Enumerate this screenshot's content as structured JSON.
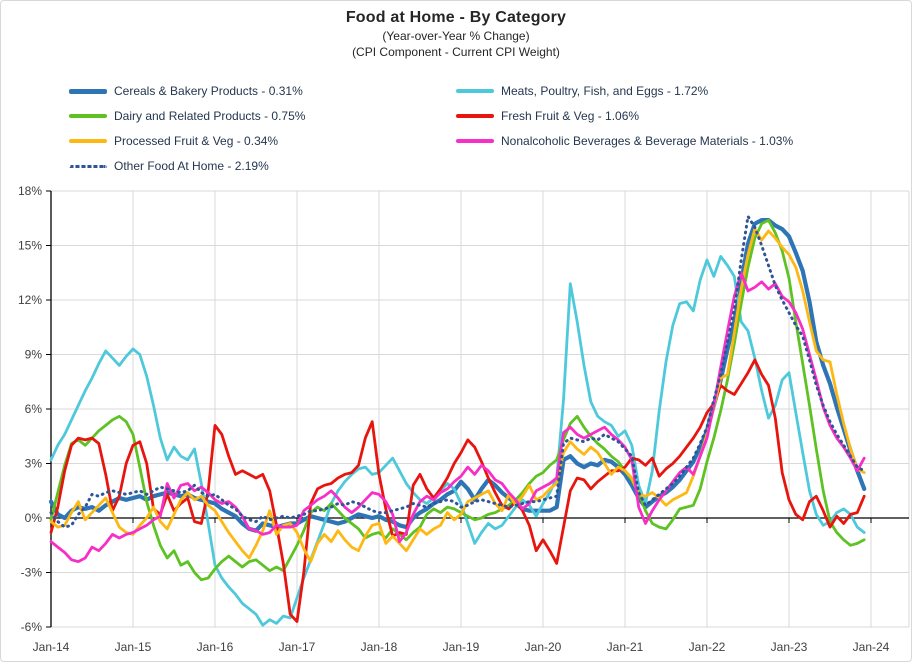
{
  "header": {
    "title": "Food at Home - By Category",
    "subtitle1": "(Year-over-Year % Change)",
    "subtitle2": "(CPI Component - Current CPI Weight)"
  },
  "chart_data": {
    "type": "line",
    "title": "Food at Home - By Category",
    "subtitle1": "(Year-over-Year % Change)",
    "subtitle2": "(CPI Component - Current CPI Weight)",
    "x_frequency": "monthly",
    "x_start": "Jan-14",
    "x_end": "Dec-23",
    "x_tick_labels": [
      "Jan-14",
      "Jan-15",
      "Jan-16",
      "Jan-17",
      "Jan-18",
      "Jan-19",
      "Jan-20",
      "Jan-21",
      "Jan-22",
      "Jan-23",
      "Jan-24"
    ],
    "y_ticks": [
      18,
      15,
      12,
      9,
      6,
      3,
      0,
      -3,
      -6
    ],
    "y_tick_labels": [
      "18%",
      "15%",
      "12%",
      "9%",
      "6%",
      "3%",
      "0%",
      "-3%",
      "-6%"
    ],
    "ylim": [
      -6,
      18
    ],
    "grid": true,
    "grid_color": "#d9d9d9",
    "axis_color": "#000000",
    "tick_label_color": "#404040",
    "legend_position": "top-left-two-columns",
    "series": [
      {
        "id": "cereals-bakery",
        "name": "Cereals & Bakery Products",
        "legend_label": "Cereals & Bakery Products - 0.31%",
        "cpi_weight": "0.31%",
        "color": "#2e75b6",
        "width": 4.2,
        "dash": false,
        "legend_column": 0,
        "legend_row": 0,
        "values": [
          0.9,
          0.2,
          0.0,
          0.4,
          0.6,
          0.5,
          0.6,
          0.4,
          0.7,
          0.9,
          1.1,
          1.0,
          1.1,
          1.2,
          1.0,
          1.2,
          1.3,
          1.4,
          1.3,
          1.2,
          1.3,
          1.1,
          1.0,
          0.9,
          0.8,
          0.5,
          0.3,
          0.1,
          -0.3,
          -0.6,
          -0.7,
          -0.3,
          -0.4,
          -0.5,
          -0.4,
          -0.3,
          -0.3,
          -0.1,
          0.1,
          0.0,
          -0.1,
          -0.2,
          -0.3,
          -0.2,
          0.0,
          0.2,
          0.1,
          0.0,
          0.1,
          -0.1,
          -0.2,
          -0.4,
          -0.5,
          0.0,
          0.3,
          0.5,
          0.8,
          1.0,
          1.3,
          1.5,
          2.0,
          1.6,
          1.0,
          1.6,
          2.1,
          1.8,
          1.4,
          1.1,
          0.8,
          0.5,
          0.4,
          0.4,
          0.4,
          0.4,
          0.6,
          3.2,
          3.4,
          3.0,
          2.8,
          3.0,
          2.9,
          3.2,
          3.1,
          2.8,
          2.4,
          1.8,
          1.1,
          0.6,
          0.9,
          1.2,
          1.4,
          1.7,
          2.1,
          2.6,
          3.1,
          3.9,
          4.8,
          6.2,
          7.6,
          9.3,
          10.8,
          13.0,
          15.1,
          16.2,
          16.4,
          16.4,
          16.1,
          15.9,
          15.5,
          14.6,
          13.6,
          11.9,
          9.7,
          8.4,
          7.4,
          6.1,
          4.9,
          3.7,
          2.6,
          1.6
        ]
      },
      {
        "id": "meats-poultry-fish-eggs",
        "name": "Meats, Poultry, Fish, and Eggs",
        "legend_label": "Meats, Poultry, Fish, and Eggs - 1.72%",
        "cpi_weight": "1.72%",
        "color": "#4ec9db",
        "width": 2.8,
        "dash": false,
        "legend_column": 1,
        "legend_row": 0,
        "values": [
          3.2,
          4.0,
          4.6,
          5.4,
          6.2,
          7.0,
          7.7,
          8.5,
          9.2,
          8.8,
          8.4,
          8.9,
          9.3,
          9.0,
          7.8,
          6.2,
          4.4,
          3.2,
          3.9,
          3.4,
          3.2,
          3.8,
          1.9,
          -0.3,
          -2.6,
          -3.3,
          -3.8,
          -4.2,
          -4.7,
          -5.0,
          -5.3,
          -5.9,
          -5.6,
          -5.8,
          -5.4,
          -5.5,
          -4.4,
          -3.3,
          -2.3,
          -1.3,
          -0.3,
          0.8,
          1.5,
          2.0,
          2.4,
          2.7,
          2.8,
          2.4,
          2.5,
          2.9,
          3.3,
          2.6,
          1.9,
          1.4,
          1.0,
          0.8,
          1.1,
          1.5,
          1.9,
          1.6,
          0.8,
          -0.3,
          -1.4,
          -0.8,
          -0.3,
          -0.6,
          -0.4,
          0.1,
          0.6,
          1.0,
          0.7,
          0.1,
          0.8,
          1.4,
          2.2,
          6.5,
          12.9,
          10.8,
          8.4,
          6.4,
          5.6,
          5.3,
          5.1,
          4.5,
          4.8,
          4.0,
          1.8,
          0.8,
          2.6,
          5.9,
          8.6,
          10.6,
          11.8,
          11.9,
          11.4,
          13.1,
          14.2,
          13.3,
          14.4,
          13.9,
          13.3,
          10.8,
          10.3,
          8.8,
          7.0,
          5.5,
          6.2,
          7.6,
          8.0,
          5.8,
          3.6,
          1.5,
          0.2,
          -0.4,
          -0.2,
          0.3,
          0.5,
          0.2,
          -0.5,
          -0.8
        ]
      },
      {
        "id": "dairy",
        "name": "Dairy and Related Products",
        "legend_label": "Dairy and Related Products - 0.75%",
        "cpi_weight": "0.75%",
        "color": "#5ec223",
        "width": 2.8,
        "dash": false,
        "legend_column": 0,
        "legend_row": 1,
        "values": [
          -0.1,
          1.4,
          2.9,
          4.1,
          4.3,
          4.0,
          4.4,
          4.8,
          5.1,
          5.4,
          5.6,
          5.3,
          4.6,
          2.8,
          0.9,
          -0.4,
          -1.5,
          -2.2,
          -1.8,
          -2.6,
          -2.4,
          -3.0,
          -3.4,
          -3.3,
          -2.8,
          -2.4,
          -2.1,
          -2.4,
          -2.7,
          -2.4,
          -2.3,
          -2.6,
          -2.9,
          -2.7,
          -2.9,
          -2.2,
          -1.5,
          -0.7,
          0.3,
          0.6,
          0.4,
          0.8,
          0.4,
          0.0,
          -0.3,
          -0.6,
          -1.1,
          -0.9,
          -0.8,
          -1.1,
          -0.6,
          -0.9,
          -1.2,
          -0.8,
          -0.5,
          0.2,
          0.5,
          0.3,
          0.6,
          0.5,
          0.3,
          0.1,
          -0.1,
          0.0,
          0.2,
          0.3,
          0.5,
          0.7,
          1.0,
          1.4,
          1.9,
          2.3,
          2.5,
          2.9,
          3.2,
          4.3,
          5.2,
          5.6,
          5.0,
          4.5,
          4.1,
          3.8,
          3.4,
          3.1,
          2.6,
          2.1,
          1.4,
          0.4,
          -0.3,
          -0.5,
          -0.6,
          -0.1,
          0.5,
          0.6,
          0.7,
          1.6,
          3.1,
          4.4,
          5.9,
          7.6,
          9.6,
          11.8,
          13.8,
          15.4,
          16.2,
          16.4,
          15.7,
          14.7,
          13.2,
          10.8,
          8.5,
          6.2,
          3.8,
          1.5,
          -0.2,
          -0.8,
          -1.2,
          -1.5,
          -1.4,
          -1.2
        ]
      },
      {
        "id": "fresh-fruit-veg",
        "name": "Fresh Fruit & Veg",
        "legend_label": "Fresh Fruit & Veg - 1.06%",
        "cpi_weight": "1.06%",
        "color": "#e8150f",
        "width": 2.8,
        "dash": false,
        "legend_column": 1,
        "legend_row": 1,
        "values": [
          -0.8,
          0.6,
          2.6,
          4.0,
          4.4,
          4.3,
          4.4,
          4.1,
          2.4,
          0.4,
          1.2,
          3.0,
          4.0,
          4.2,
          3.0,
          0.5,
          0.2,
          1.3,
          0.4,
          0.8,
          1.1,
          -0.2,
          -0.3,
          1.5,
          5.1,
          4.6,
          3.4,
          2.4,
          2.6,
          2.4,
          2.2,
          2.4,
          1.5,
          -0.4,
          -2.5,
          -5.3,
          -5.7,
          -3.0,
          0.8,
          1.6,
          1.8,
          1.9,
          2.2,
          2.4,
          2.5,
          2.9,
          4.4,
          5.3,
          2.4,
          0.5,
          -1.0,
          -0.8,
          -0.9,
          1.8,
          2.4,
          1.6,
          1.1,
          1.6,
          2.2,
          3.0,
          3.6,
          4.3,
          3.9,
          3.1,
          2.2,
          1.4,
          0.7,
          0.5,
          0.9,
          0.4,
          -0.4,
          -1.8,
          -1.2,
          -1.8,
          -2.5,
          -0.5,
          1.5,
          2.2,
          2.1,
          1.6,
          2.0,
          2.3,
          2.6,
          2.6,
          2.8,
          3.3,
          3.2,
          2.9,
          3.3,
          2.3,
          2.7,
          3.0,
          3.4,
          3.9,
          4.4,
          5.0,
          5.8,
          6.3,
          7.3,
          7.0,
          6.8,
          7.4,
          8.0,
          8.7,
          7.9,
          7.3,
          5.5,
          2.5,
          1.0,
          0.2,
          -0.1,
          0.9,
          1.2,
          0.4,
          -0.5,
          0.1,
          -0.3,
          0.2,
          0.3,
          1.2
        ]
      },
      {
        "id": "processed-fruit-veg",
        "name": "Processed Fruit & Veg",
        "legend_label": "Processed Fruit & Veg - 0.34%",
        "cpi_weight": "0.34%",
        "color": "#fdb813",
        "width": 2.8,
        "dash": false,
        "legend_column": 0,
        "legend_row": 2,
        "values": [
          -0.2,
          -0.5,
          -0.4,
          0.3,
          0.9,
          -0.1,
          0.3,
          0.7,
          1.1,
          0.3,
          -0.5,
          -0.8,
          -0.9,
          -0.4,
          0.0,
          0.6,
          -0.2,
          -0.6,
          0.2,
          1.0,
          1.4,
          1.0,
          1.2,
          0.7,
          0.4,
          -0.2,
          -0.8,
          -1.3,
          -1.8,
          -2.2,
          -1.5,
          -0.7,
          0.4,
          -0.9,
          -0.4,
          -0.3,
          -0.8,
          -1.7,
          -2.4,
          -1.4,
          -0.9,
          -1.3,
          -0.7,
          -1.2,
          -1.6,
          -1.8,
          -1.0,
          -0.4,
          -0.3,
          -1.4,
          -1.0,
          -1.4,
          -1.8,
          -1.2,
          -0.6,
          -0.9,
          -0.6,
          -0.4,
          0.3,
          -0.1,
          0.2,
          0.9,
          1.1,
          1.3,
          1.5,
          0.8,
          0.4,
          1.3,
          0.7,
          1.2,
          1.8,
          1.0,
          1.2,
          1.6,
          1.9,
          3.6,
          4.2,
          3.8,
          3.5,
          3.9,
          3.6,
          3.0,
          2.4,
          2.8,
          2.6,
          2.2,
          1.3,
          1.2,
          1.4,
          1.1,
          0.7,
          1.0,
          1.2,
          1.4,
          2.3,
          3.4,
          4.6,
          6.1,
          7.7,
          7.9,
          10.2,
          12.6,
          14.5,
          15.9,
          15.3,
          15.8,
          15.4,
          14.9,
          14.5,
          13.8,
          12.5,
          10.8,
          9.2,
          8.7,
          8.6,
          6.8,
          5.2,
          3.8,
          2.7,
          2.5
        ]
      },
      {
        "id": "nonalcoholic-beverages",
        "name": "Nonalcoholic Beverages & Beverage Materials",
        "legend_label": "Nonalcoholic Beverages & Beverage Materials - 1.03%",
        "cpi_weight": "1.03%",
        "color": "#f72fc7",
        "width": 2.8,
        "dash": false,
        "legend_column": 1,
        "legend_row": 2,
        "values": [
          -1.3,
          -1.6,
          -1.9,
          -2.3,
          -2.4,
          -2.2,
          -1.6,
          -1.8,
          -1.4,
          -0.9,
          -1.1,
          -0.9,
          -0.8,
          -0.6,
          -0.4,
          -0.1,
          0.1,
          1.9,
          1.1,
          1.8,
          1.9,
          1.5,
          1.7,
          1.4,
          1.0,
          0.8,
          0.9,
          0.6,
          0.1,
          -0.6,
          -0.7,
          -0.9,
          -0.8,
          -0.4,
          -0.5,
          -0.5,
          -0.4,
          0.4,
          0.7,
          1.0,
          1.2,
          1.5,
          1.1,
          0.6,
          0.3,
          0.6,
          1.0,
          1.4,
          1.3,
          0.9,
          0.2,
          -1.3,
          -0.8,
          0.2,
          0.9,
          1.2,
          1.0,
          1.4,
          1.6,
          2.0,
          2.3,
          2.8,
          2.4,
          2.9,
          2.6,
          2.1,
          1.9,
          1.4,
          1.0,
          0.5,
          0.8,
          1.5,
          1.7,
          1.9,
          2.2,
          4.7,
          5.0,
          4.6,
          4.4,
          4.6,
          4.8,
          5.0,
          4.6,
          4.3,
          3.9,
          3.2,
          0.6,
          -0.3,
          0.4,
          1.0,
          1.5,
          2.0,
          2.5,
          2.8,
          2.4,
          3.4,
          4.4,
          6.2,
          8.3,
          10.3,
          12.2,
          13.5,
          12.5,
          12.7,
          13.0,
          12.6,
          12.9,
          12.2,
          11.9,
          11.3,
          10.4,
          9.0,
          7.6,
          6.1,
          5.1,
          4.4,
          3.9,
          3.3,
          2.6,
          3.3
        ]
      },
      {
        "id": "other-food-at-home",
        "name": "Other Food At Home",
        "legend_label": "Other Food At Home - 2.19%",
        "cpi_weight": "2.19%",
        "color": "#2f5597",
        "width": 2.8,
        "dash": true,
        "legend_column": 0,
        "legend_row": 3,
        "values": [
          0.3,
          -0.2,
          -0.5,
          -0.4,
          0.2,
          0.6,
          1.3,
          1.2,
          1.4,
          1.5,
          1.4,
          1.3,
          1.4,
          1.5,
          1.3,
          1.5,
          1.7,
          1.6,
          1.5,
          1.4,
          1.5,
          1.8,
          1.4,
          1.2,
          1.3,
          1.0,
          0.7,
          0.5,
          0.1,
          -0.1,
          -0.2,
          0.1,
          -0.1,
          0.0,
          0.1,
          0.0,
          0.1,
          0.2,
          0.4,
          0.4,
          0.5,
          0.6,
          0.8,
          0.7,
          0.9,
          0.8,
          0.6,
          0.4,
          0.3,
          0.3,
          0.4,
          0.5,
          0.6,
          0.8,
          0.7,
          0.6,
          0.8,
          0.9,
          1.0,
          0.9,
          0.6,
          0.7,
          0.9,
          1.0,
          0.9,
          0.8,
          0.7,
          0.6,
          0.7,
          0.8,
          0.9,
          0.9,
          1.0,
          1.1,
          1.2,
          4.1,
          4.4,
          4.3,
          4.2,
          4.4,
          4.3,
          4.6,
          4.4,
          4.2,
          3.8,
          3.4,
          1.4,
          0.7,
          1.0,
          1.3,
          1.6,
          1.9,
          2.3,
          2.8,
          3.3,
          4.1,
          5.0,
          6.5,
          7.9,
          9.7,
          11.5,
          14.2,
          16.6,
          16.0,
          15.0,
          13.9,
          12.8,
          12.0,
          11.3,
          10.6,
          10.0,
          8.7,
          7.3,
          6.2,
          5.3,
          4.6,
          4.0,
          3.4,
          2.8,
          2.6
        ]
      }
    ]
  }
}
